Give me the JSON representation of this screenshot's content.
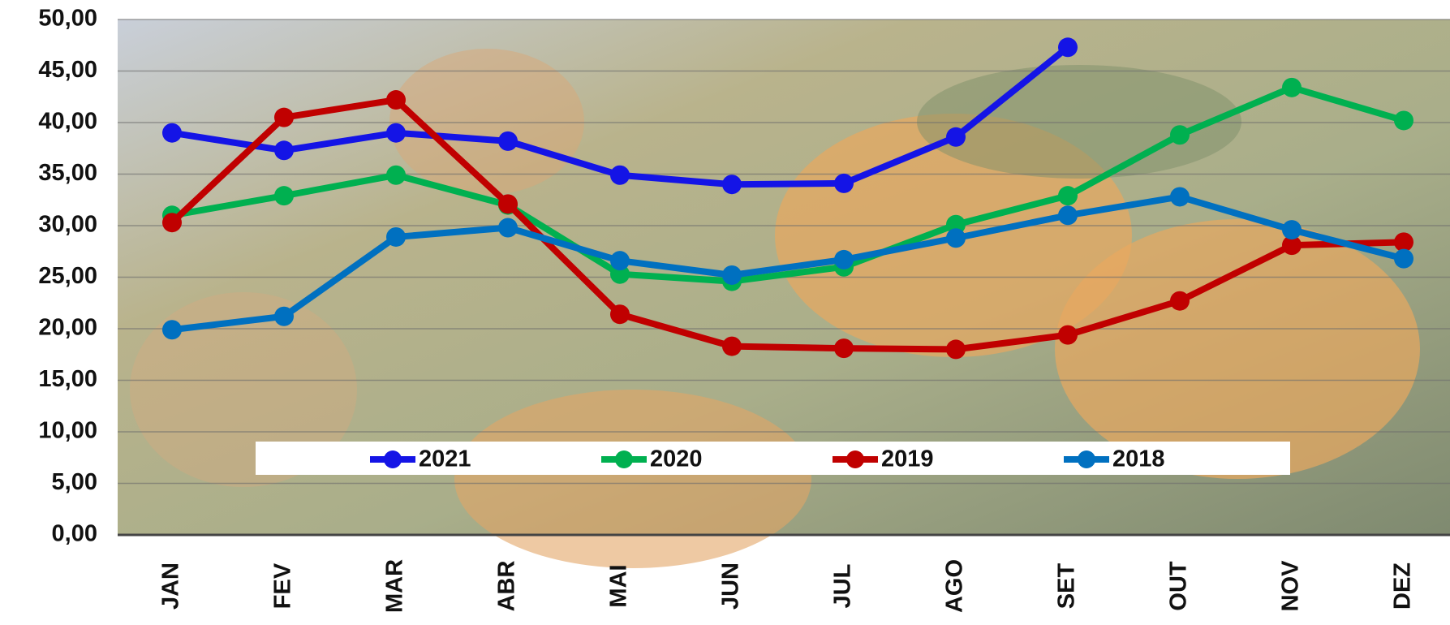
{
  "chart_data": {
    "type": "line",
    "categories": [
      "JAN",
      "FEV",
      "MAR",
      "ABR",
      "MAI",
      "JUN",
      "JUL",
      "AGO",
      "SET",
      "OUT",
      "NOV",
      "DEZ"
    ],
    "series": [
      {
        "name": "2021",
        "color": "#1414e6",
        "values": [
          39.0,
          37.3,
          39.0,
          38.2,
          34.9,
          34.0,
          34.1,
          38.6,
          47.3,
          null,
          null,
          null
        ]
      },
      {
        "name": "2020",
        "color": "#00b050",
        "values": [
          31.0,
          32.9,
          34.9,
          32.0,
          25.3,
          24.6,
          26.0,
          30.1,
          32.9,
          38.8,
          43.4,
          40.2
        ]
      },
      {
        "name": "2019",
        "color": "#c00000",
        "values": [
          30.3,
          40.5,
          42.2,
          32.1,
          21.4,
          18.3,
          18.1,
          18.0,
          19.4,
          22.7,
          28.1,
          28.4
        ]
      },
      {
        "name": "2018",
        "color": "#0070c0",
        "values": [
          19.9,
          21.2,
          28.9,
          29.8,
          26.6,
          25.2,
          26.7,
          28.8,
          31.0,
          32.8,
          29.6,
          26.8
        ]
      }
    ],
    "ylim": [
      0,
      50
    ],
    "yticks": [
      {
        "value": 0,
        "label": "0,00"
      },
      {
        "value": 5,
        "label": "5,00"
      },
      {
        "value": 10,
        "label": "10,00"
      },
      {
        "value": 15,
        "label": "15,00"
      },
      {
        "value": 20,
        "label": "20,00"
      },
      {
        "value": 25,
        "label": "25,00"
      },
      {
        "value": 30,
        "label": "30,00"
      },
      {
        "value": 35,
        "label": "35,00"
      },
      {
        "value": 40,
        "label": "40,00"
      },
      {
        "value": 45,
        "label": "45,00"
      },
      {
        "value": 50,
        "label": "50,00"
      }
    ],
    "grid": true
  }
}
